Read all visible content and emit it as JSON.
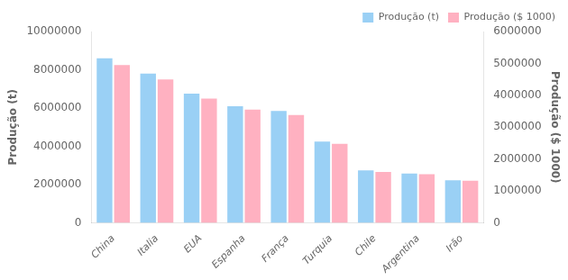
{
  "chart_data": {
    "type": "bar",
    "categories": [
      "China",
      "Italia",
      "EUA",
      "Espanha",
      "França",
      "Turquia",
      "Chile",
      "Argentina",
      "Irão"
    ],
    "series": [
      {
        "name": "Produção (t)",
        "values": [
          8600000,
          7800000,
          6750000,
          6100000,
          5850000,
          4250000,
          2750000,
          2580000,
          2230000
        ]
      },
      {
        "name": "Produção ($ 1000)",
        "axis": "y2",
        "values": [
          4950000,
          4500000,
          3900000,
          3550000,
          3380000,
          2480000,
          1600000,
          1530000,
          1320000
        ]
      }
    ],
    "ylabel": "Produção (t)",
    "y2label": "Produção ($ 1000)",
    "ylim": [
      0,
      10000000
    ],
    "yticks": [
      0,
      2000000,
      4000000,
      6000000,
      8000000,
      10000000
    ],
    "y2lim": [
      0,
      6000000
    ],
    "y2ticks": [
      0,
      1000000,
      2000000,
      3000000,
      4000000,
      5000000,
      6000000
    ],
    "grid": false,
    "legend": "upper right"
  }
}
